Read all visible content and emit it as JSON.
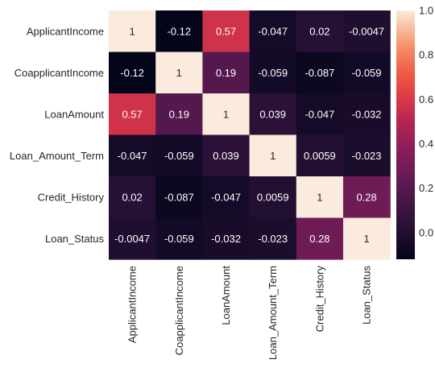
{
  "chart_data": {
    "type": "heatmap",
    "title": "",
    "xlabel": "",
    "ylabel": "",
    "row_labels": [
      "ApplicantIncome",
      "CoapplicantIncome",
      "LoanAmount",
      "Loan_Amount_Term",
      "Credit_History",
      "Loan_Status"
    ],
    "col_labels": [
      "ApplicantIncome",
      "CoapplicantIncome",
      "LoanAmount",
      "Loan_Amount_Term",
      "Credit_History",
      "Loan_Status"
    ],
    "values": [
      [
        1,
        -0.12,
        0.57,
        -0.047,
        0.02,
        -0.0047
      ],
      [
        -0.12,
        1,
        0.19,
        -0.059,
        -0.087,
        -0.059
      ],
      [
        0.57,
        0.19,
        1,
        0.039,
        -0.047,
        -0.032
      ],
      [
        -0.047,
        -0.059,
        0.039,
        1,
        0.0059,
        -0.023
      ],
      [
        0.02,
        -0.087,
        -0.047,
        0.0059,
        1,
        0.28
      ],
      [
        -0.0047,
        -0.059,
        -0.032,
        -0.023,
        0.28,
        1
      ]
    ],
    "cell_labels": [
      [
        "1",
        "-0.12",
        "0.57",
        "-0.047",
        "0.02",
        "-0.0047"
      ],
      [
        "-0.12",
        "1",
        "0.19",
        "-0.059",
        "-0.087",
        "-0.059"
      ],
      [
        "0.57",
        "0.19",
        "1",
        "0.039",
        "-0.047",
        "-0.032"
      ],
      [
        "-0.047",
        "-0.059",
        "0.039",
        "1",
        "0.0059",
        "-0.023"
      ],
      [
        "0.02",
        "-0.087",
        "-0.047",
        "0.0059",
        "1",
        "0.28"
      ],
      [
        "-0.0047",
        "-0.059",
        "-0.032",
        "-0.023",
        "0.28",
        "1"
      ]
    ],
    "colormap": "rocket",
    "value_range": [
      -0.12,
      1
    ],
    "colorbar": {
      "position": "right",
      "ticks": [
        0.0,
        0.2,
        0.4,
        0.6,
        0.8,
        1.0
      ],
      "tick_labels": [
        "0.0",
        "0.2",
        "0.4",
        "0.6",
        "0.8",
        "1.0"
      ]
    },
    "grid": false
  }
}
